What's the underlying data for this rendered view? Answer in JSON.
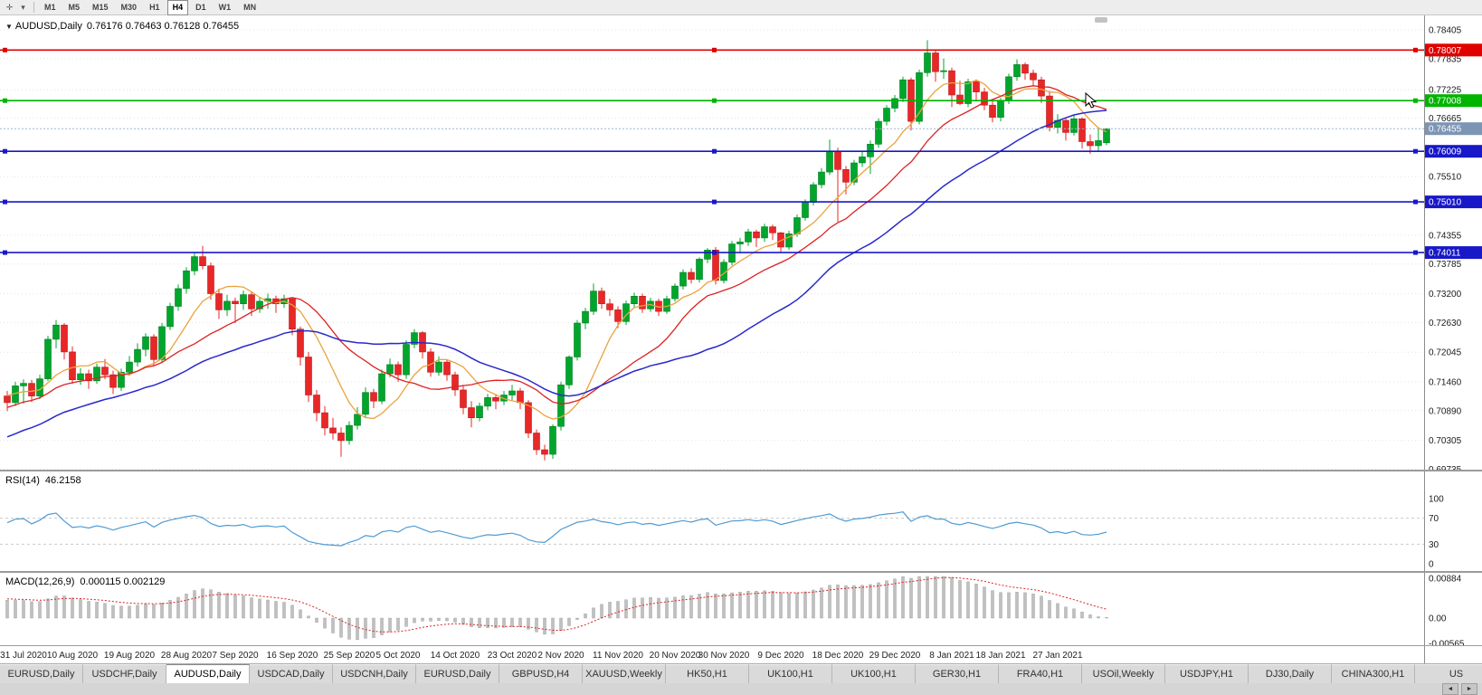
{
  "toolbar": {
    "chart_icon": "✛",
    "caret_icon": "▾",
    "periods": [
      "M1",
      "M5",
      "M15",
      "M30",
      "H1",
      "H4",
      "D1",
      "W1",
      "MN"
    ],
    "active_period": "H4"
  },
  "chart_header": {
    "collapse_icon": "▼",
    "symbol": "AUDUSD,Daily",
    "ohlc": "0.76176 0.76463 0.76128 0.76455"
  },
  "chart_data": {
    "type": "candlestick",
    "symbol": "AUDUSD",
    "timeframe": "Daily",
    "ohlc_current": {
      "open": 0.76176,
      "high": 0.76463,
      "low": 0.76128,
      "close": 0.76455
    },
    "price_range_shown": {
      "top": 0.78405,
      "bottom": 0.69735
    },
    "y_axis_ticks": [
      "0.78405",
      "0.77835",
      "0.77225",
      "0.76665",
      "0.75510",
      "0.74355",
      "0.73785",
      "0.73200",
      "0.72630",
      "0.72045",
      "0.71460",
      "0.70890",
      "0.70305",
      "0.69735"
    ],
    "x_labels": [
      {
        "i": 2,
        "t": "31 Jul 2020"
      },
      {
        "i": 8,
        "t": "10 Aug 2020"
      },
      {
        "i": 15,
        "t": "19 Aug 2020"
      },
      {
        "i": 22,
        "t": "28 Aug 2020"
      },
      {
        "i": 28,
        "t": "7 Sep 2020"
      },
      {
        "i": 35,
        "t": "16 Sep 2020"
      },
      {
        "i": 42,
        "t": "25 Sep 2020"
      },
      {
        "i": 48,
        "t": "5 Oct 2020"
      },
      {
        "i": 55,
        "t": "14 Oct 2020"
      },
      {
        "i": 62,
        "t": "23 Oct 2020"
      },
      {
        "i": 68,
        "t": "2 Nov 2020"
      },
      {
        "i": 75,
        "t": "11 Nov 2020"
      },
      {
        "i": 82,
        "t": "20 Nov 2020"
      },
      {
        "i": 88,
        "t": "30 Nov 2020"
      },
      {
        "i": 95,
        "t": "9 Dec 2020"
      },
      {
        "i": 102,
        "t": "18 Dec 2020"
      },
      {
        "i": 109,
        "t": "29 Dec 2020"
      },
      {
        "i": 116,
        "t": "8 Jan 2021"
      },
      {
        "i": 122,
        "t": "18 Jan 2021"
      },
      {
        "i": 129,
        "t": "27 Jan 2021"
      }
    ],
    "hlines": [
      {
        "price": 0.78007,
        "label": "0.78007",
        "color": "#e00000"
      },
      {
        "price": 0.77008,
        "label": "0.77008",
        "color": "#00b400"
      },
      {
        "price": 0.76009,
        "label": "0.76009",
        "color": "#1818c8"
      },
      {
        "price": 0.7501,
        "label": "0.75010",
        "color": "#1818c8"
      },
      {
        "price": 0.74011,
        "label": "0.74011",
        "color": "#1818c8"
      }
    ],
    "current_price": {
      "value": 0.76455,
      "label": "0.76455",
      "color": "#7d95b5"
    },
    "candles": [
      [
        0.7118,
        0.7128,
        0.7088,
        0.7105
      ],
      [
        0.7105,
        0.7146,
        0.7098,
        0.7138
      ],
      [
        0.7138,
        0.7151,
        0.7103,
        0.7143
      ],
      [
        0.7143,
        0.715,
        0.7106,
        0.7118
      ],
      [
        0.7118,
        0.716,
        0.7112,
        0.7152
      ],
      [
        0.7152,
        0.7237,
        0.7148,
        0.723
      ],
      [
        0.723,
        0.7268,
        0.7212,
        0.7258
      ],
      [
        0.7258,
        0.7262,
        0.719,
        0.7205
      ],
      [
        0.7205,
        0.7216,
        0.7142,
        0.715
      ],
      [
        0.715,
        0.7173,
        0.714,
        0.7162
      ],
      [
        0.7162,
        0.717,
        0.7132,
        0.7148
      ],
      [
        0.7148,
        0.7182,
        0.7142,
        0.7175
      ],
      [
        0.7175,
        0.7191,
        0.7151,
        0.716
      ],
      [
        0.716,
        0.7168,
        0.7122,
        0.7135
      ],
      [
        0.7135,
        0.7172,
        0.7128,
        0.7165
      ],
      [
        0.7165,
        0.7197,
        0.7158,
        0.7185
      ],
      [
        0.7185,
        0.7222,
        0.7176,
        0.721
      ],
      [
        0.721,
        0.7242,
        0.7196,
        0.7235
      ],
      [
        0.7235,
        0.724,
        0.7178,
        0.719
      ],
      [
        0.719,
        0.7262,
        0.7184,
        0.7255
      ],
      [
        0.7255,
        0.7302,
        0.7248,
        0.7295
      ],
      [
        0.7295,
        0.7338,
        0.7286,
        0.733
      ],
      [
        0.733,
        0.7372,
        0.732,
        0.7365
      ],
      [
        0.7365,
        0.7401,
        0.7356,
        0.7393
      ],
      [
        0.7393,
        0.7414,
        0.7368,
        0.7375
      ],
      [
        0.7375,
        0.7381,
        0.7308,
        0.732
      ],
      [
        0.732,
        0.733,
        0.727,
        0.7288
      ],
      [
        0.7288,
        0.7318,
        0.7276,
        0.7305
      ],
      [
        0.7305,
        0.7312,
        0.7262,
        0.73
      ],
      [
        0.73,
        0.7326,
        0.7288,
        0.7318
      ],
      [
        0.7318,
        0.7324,
        0.7276,
        0.729
      ],
      [
        0.729,
        0.7312,
        0.7282,
        0.7305
      ],
      [
        0.7305,
        0.732,
        0.729,
        0.731
      ],
      [
        0.731,
        0.7316,
        0.7282,
        0.73
      ],
      [
        0.73,
        0.7318,
        0.7292,
        0.731
      ],
      [
        0.731,
        0.7312,
        0.7238,
        0.725
      ],
      [
        0.725,
        0.7255,
        0.7178,
        0.7195
      ],
      [
        0.7195,
        0.7205,
        0.7106,
        0.712
      ],
      [
        0.712,
        0.713,
        0.7068,
        0.7085
      ],
      [
        0.7085,
        0.7098,
        0.704,
        0.7055
      ],
      [
        0.7055,
        0.7075,
        0.7032,
        0.7045
      ],
      [
        0.7045,
        0.7056,
        0.6998,
        0.703
      ],
      [
        0.703,
        0.7068,
        0.7022,
        0.706
      ],
      [
        0.706,
        0.7096,
        0.7052,
        0.7082
      ],
      [
        0.7082,
        0.7135,
        0.7075,
        0.7125
      ],
      [
        0.7125,
        0.7132,
        0.7094,
        0.7108
      ],
      [
        0.7108,
        0.717,
        0.7102,
        0.7162
      ],
      [
        0.7162,
        0.7192,
        0.7155,
        0.718
      ],
      [
        0.718,
        0.7186,
        0.7146,
        0.716
      ],
      [
        0.716,
        0.7228,
        0.7152,
        0.722
      ],
      [
        0.722,
        0.725,
        0.7212,
        0.7243
      ],
      [
        0.7243,
        0.7246,
        0.7192,
        0.7205
      ],
      [
        0.7205,
        0.7212,
        0.7156,
        0.7165
      ],
      [
        0.7165,
        0.7196,
        0.7158,
        0.7185
      ],
      [
        0.7185,
        0.719,
        0.7148,
        0.716
      ],
      [
        0.716,
        0.7166,
        0.7118,
        0.713
      ],
      [
        0.713,
        0.714,
        0.7082,
        0.7095
      ],
      [
        0.7095,
        0.7108,
        0.7056,
        0.7075
      ],
      [
        0.7075,
        0.7105,
        0.7068,
        0.7098
      ],
      [
        0.7098,
        0.7122,
        0.709,
        0.7115
      ],
      [
        0.7115,
        0.712,
        0.7092,
        0.7108
      ],
      [
        0.7108,
        0.7128,
        0.71,
        0.712
      ],
      [
        0.712,
        0.714,
        0.711,
        0.7128
      ],
      [
        0.7128,
        0.7134,
        0.7092,
        0.7105
      ],
      [
        0.7105,
        0.711,
        0.7035,
        0.7045
      ],
      [
        0.7045,
        0.7052,
        0.7002,
        0.7012
      ],
      [
        0.7012,
        0.7022,
        0.6991,
        0.7003
      ],
      [
        0.7003,
        0.7062,
        0.6994,
        0.7058
      ],
      [
        0.7058,
        0.7146,
        0.705,
        0.714
      ],
      [
        0.714,
        0.7198,
        0.7132,
        0.7195
      ],
      [
        0.7195,
        0.7268,
        0.7188,
        0.7262
      ],
      [
        0.7262,
        0.7292,
        0.725,
        0.7285
      ],
      [
        0.7285,
        0.734,
        0.7278,
        0.7325
      ],
      [
        0.7325,
        0.7332,
        0.729,
        0.73
      ],
      [
        0.73,
        0.731,
        0.7276,
        0.7288
      ],
      [
        0.7288,
        0.7295,
        0.7252,
        0.7265
      ],
      [
        0.7265,
        0.7306,
        0.7258,
        0.73
      ],
      [
        0.73,
        0.7322,
        0.7292,
        0.7315
      ],
      [
        0.7315,
        0.732,
        0.7282,
        0.729
      ],
      [
        0.729,
        0.7312,
        0.7284,
        0.7305
      ],
      [
        0.7305,
        0.731,
        0.7276,
        0.7285
      ],
      [
        0.7285,
        0.7316,
        0.728,
        0.731
      ],
      [
        0.731,
        0.734,
        0.7304,
        0.7335
      ],
      [
        0.7335,
        0.7368,
        0.7328,
        0.7362
      ],
      [
        0.7362,
        0.737,
        0.734,
        0.7348
      ],
      [
        0.7348,
        0.7392,
        0.7342,
        0.7388
      ],
      [
        0.7388,
        0.741,
        0.738,
        0.7406
      ],
      [
        0.7406,
        0.7412,
        0.7338,
        0.7346
      ],
      [
        0.7346,
        0.7388,
        0.734,
        0.7382
      ],
      [
        0.7382,
        0.7424,
        0.7376,
        0.7418
      ],
      [
        0.7418,
        0.743,
        0.7402,
        0.7422
      ],
      [
        0.7422,
        0.7448,
        0.7414,
        0.7442
      ],
      [
        0.7442,
        0.7446,
        0.7412,
        0.743
      ],
      [
        0.743,
        0.7458,
        0.7422,
        0.7452
      ],
      [
        0.7452,
        0.7456,
        0.7426,
        0.744
      ],
      [
        0.744,
        0.7442,
        0.7402,
        0.7412
      ],
      [
        0.7412,
        0.7444,
        0.7406,
        0.7438
      ],
      [
        0.7438,
        0.7476,
        0.7432,
        0.747
      ],
      [
        0.747,
        0.7506,
        0.7464,
        0.75
      ],
      [
        0.75,
        0.754,
        0.7494,
        0.7535
      ],
      [
        0.7535,
        0.7568,
        0.7528,
        0.756
      ],
      [
        0.756,
        0.7624,
        0.7554,
        0.76
      ],
      [
        0.76,
        0.7608,
        0.7462,
        0.7565
      ],
      [
        0.7565,
        0.7572,
        0.7516,
        0.754
      ],
      [
        0.754,
        0.7584,
        0.7534,
        0.7578
      ],
      [
        0.7578,
        0.76,
        0.757,
        0.759
      ],
      [
        0.759,
        0.7622,
        0.7556,
        0.7615
      ],
      [
        0.7615,
        0.7666,
        0.7608,
        0.766
      ],
      [
        0.766,
        0.7692,
        0.7652,
        0.7686
      ],
      [
        0.7686,
        0.7712,
        0.7678,
        0.7705
      ],
      [
        0.7705,
        0.7748,
        0.7698,
        0.7742
      ],
      [
        0.7742,
        0.7746,
        0.7642,
        0.766
      ],
      [
        0.766,
        0.7762,
        0.7654,
        0.7756
      ],
      [
        0.7756,
        0.782,
        0.7748,
        0.7795
      ],
      [
        0.7795,
        0.7802,
        0.7738,
        0.7758
      ],
      [
        0.7758,
        0.7784,
        0.7744,
        0.776
      ],
      [
        0.776,
        0.7766,
        0.7688,
        0.7712
      ],
      [
        0.7712,
        0.774,
        0.7692,
        0.7695
      ],
      [
        0.7695,
        0.7744,
        0.7688,
        0.7738
      ],
      [
        0.7738,
        0.7742,
        0.7702,
        0.7718
      ],
      [
        0.7718,
        0.7726,
        0.7682,
        0.7692
      ],
      [
        0.7692,
        0.7702,
        0.7658,
        0.7668
      ],
      [
        0.7668,
        0.7706,
        0.766,
        0.77
      ],
      [
        0.77,
        0.7754,
        0.7694,
        0.7748
      ],
      [
        0.7748,
        0.7782,
        0.774,
        0.7772
      ],
      [
        0.7772,
        0.7776,
        0.7742,
        0.7755
      ],
      [
        0.7755,
        0.7762,
        0.773,
        0.7742
      ],
      [
        0.7742,
        0.7748,
        0.7696,
        0.771
      ],
      [
        0.771,
        0.772,
        0.764,
        0.7648
      ],
      [
        0.7648,
        0.7674,
        0.7636,
        0.7662
      ],
      [
        0.7662,
        0.7668,
        0.7622,
        0.7638
      ],
      [
        0.7638,
        0.7672,
        0.7632,
        0.7665
      ],
      [
        0.7665,
        0.7668,
        0.7606,
        0.762
      ],
      [
        0.762,
        0.7634,
        0.7596,
        0.7612
      ],
      [
        0.7612,
        0.7648,
        0.76,
        0.7622
      ],
      [
        0.76176,
        0.76463,
        0.76128,
        0.76455
      ]
    ],
    "preroll_closes": [
      0.6862,
      0.6875,
      0.689,
      0.6878,
      0.6895,
      0.691,
      0.6902,
      0.6925,
      0.6918,
      0.694,
      0.6932,
      0.695,
      0.6965,
      0.6958,
      0.6972,
      0.6988,
      0.698,
      0.7002,
      0.6995,
      0.7015,
      0.7008,
      0.7028,
      0.704,
      0.7032,
      0.7052,
      0.7045,
      0.7068,
      0.706,
      0.7082,
      0.7075,
      0.7095,
      0.7088,
      0.7108,
      0.71,
      0.7118,
      0.711,
      0.7128,
      0.712,
      0.7138,
      0.713
    ],
    "colors": {
      "up": "#00a62c",
      "down": "#e82727",
      "up_edge": "#047c20",
      "down_edge": "#b51d1d",
      "ma_fast": "#eaa23e",
      "ma_mid": "#dd2222",
      "ma_slow": "#2929cc",
      "grid": "#e4e4e4"
    },
    "ma_periods": {
      "fast": 8,
      "mid": 17,
      "slow": 34
    },
    "rsi": {
      "label": "RSI(14)",
      "value": "46.2158",
      "period": 14,
      "color": "#4f9bd5",
      "axis_labels": [
        "100",
        "70",
        "30",
        "0"
      ],
      "levels": [
        70,
        30
      ]
    },
    "macd": {
      "label": "MACD(12,26,9)",
      "values": "0.000115 0.002129",
      "fast": 12,
      "slow": 26,
      "signal": 9,
      "axis_labels": [
        "0.00884",
        "0.00",
        "-0.00565"
      ],
      "hist_color": "#c0c0c0",
      "signal_color": "#dd2222"
    }
  },
  "tabs": {
    "items": [
      "EURUSD,Daily",
      "USDCHF,Daily",
      "AUDUSD,Daily",
      "USDCAD,Daily",
      "USDCNH,Daily",
      "EURUSD,Daily",
      "GBPUSD,H4",
      "XAUUSD,Weekly",
      "HK50,H1",
      "UK100,H1",
      "UK100,H1",
      "GER30,H1",
      "FRA40,H1",
      "USOil,Weekly",
      "USDJPY,H1",
      "DJ30,Daily",
      "CHINA300,H1",
      "US"
    ],
    "active_index": 2,
    "scroll_left_icon": "◄",
    "scroll_right_icon": "►"
  }
}
